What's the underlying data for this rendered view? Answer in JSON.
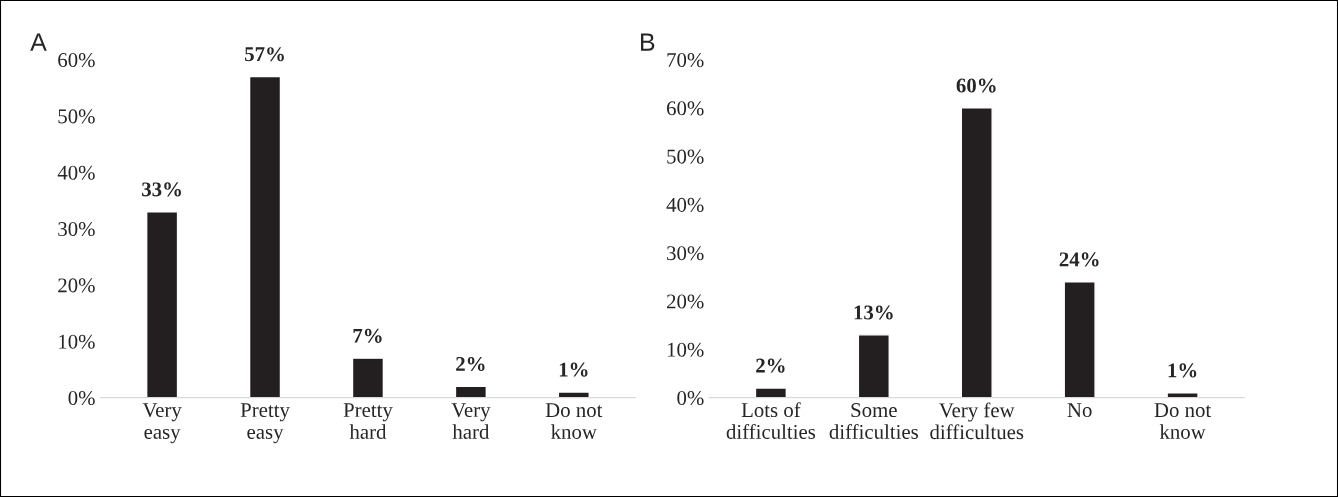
{
  "chart_data": [
    {
      "type": "bar",
      "title": "A",
      "categories": [
        "Very\neasy",
        "Pretty\neasy",
        "Pretty\nhard",
        "Very\nhard",
        "Do not\nknow"
      ],
      "values": [
        33,
        57,
        7,
        2,
        1
      ],
      "value_labels": [
        "33%",
        "57%",
        "7%",
        "2%",
        "1%"
      ],
      "color": "#231f20",
      "ylim": [
        0,
        60
      ],
      "yticks": [
        {
          "value": 0,
          "label": "0%"
        },
        {
          "value": 10,
          "label": "10%"
        },
        {
          "value": 20,
          "label": "20%"
        },
        {
          "value": 30,
          "label": "30%"
        },
        {
          "value": 40,
          "label": "40%"
        },
        {
          "value": 50,
          "label": "50%"
        },
        {
          "value": 60,
          "label": "60%"
        }
      ]
    },
    {
      "type": "bar",
      "title": "B",
      "categories": [
        "Lots of\ndifficulties",
        "Some\ndifficulties",
        "Very few\ndifficultues",
        "No",
        "Do not\nknow"
      ],
      "values": [
        2,
        13,
        60,
        24,
        1
      ],
      "value_labels": [
        "2%",
        "13%",
        "60%",
        "24%",
        "1%"
      ],
      "color": "#231f20",
      "ylim": [
        0,
        70
      ],
      "yticks": [
        {
          "value": 0,
          "label": "0%"
        },
        {
          "value": 10,
          "label": "10%"
        },
        {
          "value": 20,
          "label": "20%"
        },
        {
          "value": 30,
          "label": "30%"
        },
        {
          "value": 40,
          "label": "40%"
        },
        {
          "value": 50,
          "label": "50%"
        },
        {
          "value": 60,
          "label": "60%"
        },
        {
          "value": 70,
          "label": "70%"
        }
      ]
    }
  ]
}
